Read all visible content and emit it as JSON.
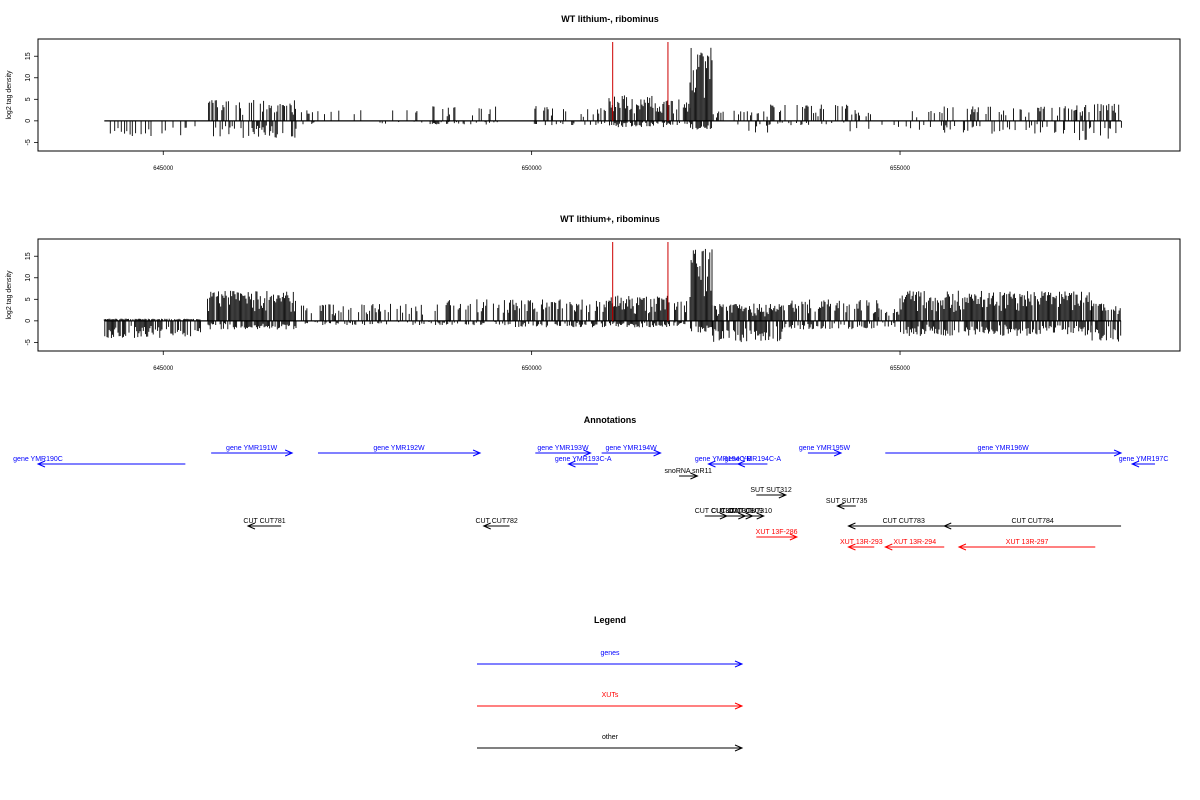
{
  "panels": [
    {
      "title": "WT lithium-, ribominus",
      "ylabel": "log2 tag density",
      "yticks": [
        -5,
        0,
        5,
        10,
        15
      ],
      "ylim": [
        -7,
        19
      ],
      "xlim": [
        643300,
        658800
      ],
      "xticks": [
        645000,
        650000,
        655000
      ],
      "xtick_labels": [
        "645000",
        "650000",
        "655000"
      ],
      "baseline": {
        "from": 644200,
        "to": 658000
      },
      "marker_lines": [
        651100,
        651850
      ],
      "bar_color": "#000000",
      "marker_color": "#cc0000",
      "segments": [
        {
          "from": 644200,
          "to": 645500,
          "pos": 0,
          "neg": 4,
          "dens": 0.35
        },
        {
          "from": 645600,
          "to": 646800,
          "pos": 5,
          "neg": 4,
          "dens": 0.55
        },
        {
          "from": 646800,
          "to": 648600,
          "pos": 2.5,
          "neg": 0.8,
          "dens": 0.12
        },
        {
          "from": 648600,
          "to": 649600,
          "pos": 3.5,
          "neg": 1,
          "dens": 0.25
        },
        {
          "from": 650000,
          "to": 651050,
          "pos": 3.5,
          "neg": 1,
          "dens": 0.3
        },
        {
          "from": 651050,
          "to": 651850,
          "pos": 6,
          "neg": 1.5,
          "dens": 0.9
        },
        {
          "from": 651850,
          "to": 652150,
          "pos": 5,
          "neg": 1,
          "dens": 0.5
        },
        {
          "from": 652150,
          "to": 652450,
          "pos": 17,
          "neg": 2,
          "dens": 1
        },
        {
          "from": 652450,
          "to": 653200,
          "pos": 2.5,
          "neg": 3,
          "dens": 0.3
        },
        {
          "from": 653200,
          "to": 654300,
          "pos": 4,
          "neg": 1,
          "dens": 0.25
        },
        {
          "from": 654300,
          "to": 655600,
          "pos": 2.5,
          "neg": 2.5,
          "dens": 0.2
        },
        {
          "from": 655600,
          "to": 657400,
          "pos": 3.5,
          "neg": 3,
          "dens": 0.3
        },
        {
          "from": 657400,
          "to": 658000,
          "pos": 4,
          "neg": 4.5,
          "dens": 0.5
        }
      ]
    },
    {
      "title": "WT lithium+, ribominus",
      "ylabel": "log2 tag density",
      "yticks": [
        -5,
        0,
        5,
        10,
        15
      ],
      "ylim": [
        -7,
        19
      ],
      "xlim": [
        643300,
        658800
      ],
      "xticks": [
        645000,
        650000,
        655000
      ],
      "xtick_labels": [
        "645000",
        "650000",
        "655000"
      ],
      "baseline": {
        "from": 644200,
        "to": 658000
      },
      "marker_lines": [
        651100,
        651850
      ],
      "bar_color": "#000000",
      "marker_color": "#cc0000",
      "segments": [
        {
          "from": 644200,
          "to": 645500,
          "pos": 0.5,
          "neg": 4,
          "dens": 0.85
        },
        {
          "from": 645600,
          "to": 646800,
          "pos": 7,
          "neg": 2,
          "dens": 0.95
        },
        {
          "from": 646800,
          "to": 648600,
          "pos": 4,
          "neg": 1,
          "dens": 0.35
        },
        {
          "from": 648600,
          "to": 649700,
          "pos": 5,
          "neg": 1,
          "dens": 0.45
        },
        {
          "from": 649700,
          "to": 651050,
          "pos": 5,
          "neg": 1.5,
          "dens": 0.55
        },
        {
          "from": 651050,
          "to": 651850,
          "pos": 6,
          "neg": 1.5,
          "dens": 0.95
        },
        {
          "from": 651850,
          "to": 652150,
          "pos": 5,
          "neg": 1.5,
          "dens": 0.6
        },
        {
          "from": 652150,
          "to": 652450,
          "pos": 17,
          "neg": 3,
          "dens": 1
        },
        {
          "from": 652450,
          "to": 653400,
          "pos": 4,
          "neg": 5,
          "dens": 0.85
        },
        {
          "from": 653400,
          "to": 654700,
          "pos": 5,
          "neg": 2,
          "dens": 0.6
        },
        {
          "from": 654700,
          "to": 655000,
          "pos": 3,
          "neg": 1.5,
          "dens": 0.4
        },
        {
          "from": 655000,
          "to": 657600,
          "pos": 7,
          "neg": 3.5,
          "dens": 0.95
        },
        {
          "from": 657600,
          "to": 658000,
          "pos": 4,
          "neg": 5,
          "dens": 0.8
        }
      ]
    }
  ],
  "annotations": {
    "title": "Annotations",
    "items": [
      {
        "label": "gene YMR190C",
        "color": "#0000ff",
        "dir": "left",
        "track": 1,
        "x1": 643300,
        "x2": 645300,
        "label_x": 643300
      },
      {
        "label": "gene YMR191W",
        "color": "#0000ff",
        "dir": "right",
        "track": 0,
        "x1": 645650,
        "x2": 646750
      },
      {
        "label": "gene YMR192W",
        "color": "#0000ff",
        "dir": "right",
        "track": 0,
        "x1": 647100,
        "x2": 649300
      },
      {
        "label": "gene YMR193W",
        "color": "#0000ff",
        "dir": "right",
        "track": 0,
        "x1": 650050,
        "x2": 650800
      },
      {
        "label": "gene YMR193C-A",
        "color": "#0000ff",
        "dir": "left",
        "track": 1,
        "x1": 650500,
        "x2": 650900
      },
      {
        "label": "gene YMR194W",
        "color": "#0000ff",
        "dir": "right",
        "track": 0,
        "x1": 650950,
        "x2": 651750
      },
      {
        "label": "gene YMR194C-B",
        "color": "#0000ff",
        "dir": "left",
        "track": 1,
        "x1": 652400,
        "x2": 652800
      },
      {
        "label": "gene YMR194C-A",
        "color": "#0000ff",
        "dir": "left",
        "track": 1,
        "x1": 652800,
        "x2": 653200
      },
      {
        "label": "gene YMR195W",
        "color": "#0000ff",
        "dir": "right",
        "track": 0,
        "x1": 653750,
        "x2": 654200
      },
      {
        "label": "gene YMR196W",
        "color": "#0000ff",
        "dir": "right",
        "track": 0,
        "x1": 654800,
        "x2": 658000
      },
      {
        "label": "gene YMR197C",
        "color": "#0000ff",
        "dir": "left",
        "track": 1,
        "x1": 658150,
        "x2": 658800
      },
      {
        "label": "snoRNA snR11",
        "color": "#000000",
        "dir": "right",
        "track": 2,
        "x1": 652000,
        "x2": 652250
      },
      {
        "label": "SUT SUT312",
        "color": "#000000",
        "dir": "right",
        "track": 3,
        "x1": 653050,
        "x2": 653450
      },
      {
        "label": "SUT SUT735",
        "color": "#000000",
        "dir": "left",
        "track": 4,
        "x1": 654150,
        "x2": 654400
      },
      {
        "label": "CUT CUT781",
        "color": "#000000",
        "dir": "left",
        "track": 6,
        "x1": 646150,
        "x2": 646600
      },
      {
        "label": "CUT CUT782",
        "color": "#000000",
        "dir": "left",
        "track": 6,
        "x1": 649350,
        "x2": 649700
      },
      {
        "label": "CUT CUT307",
        "color": "#000000",
        "dir": "right",
        "track": 5,
        "x1": 652350,
        "x2": 652650
      },
      {
        "label": "CUT CUT308",
        "color": "#000000",
        "dir": "right",
        "track": 5,
        "x1": 652550,
        "x2": 652900
      },
      {
        "label": "CUT CUT309",
        "color": "#000000",
        "dir": "right",
        "track": 5,
        "x1": 652700,
        "x2": 653000
      },
      {
        "label": "CUT CUT310",
        "color": "#000000",
        "dir": "right",
        "track": 5,
        "x1": 652800,
        "x2": 653150
      },
      {
        "label": "CUT CUT783",
        "color": "#000000",
        "dir": "left",
        "track": 6,
        "x1": 654300,
        "x2": 655800
      },
      {
        "label": "CUT CUT784",
        "color": "#000000",
        "dir": "left",
        "track": 6,
        "x1": 655600,
        "x2": 658000
      },
      {
        "label": "XUT 13F-286",
        "color": "#ff0000",
        "dir": "right",
        "track": 7,
        "x1": 653050,
        "x2": 653600
      },
      {
        "label": "XUT 13R-293",
        "color": "#ff0000",
        "dir": "left",
        "track": 8,
        "x1": 654300,
        "x2": 654650
      },
      {
        "label": "XUT 13R-294",
        "color": "#ff0000",
        "dir": "left",
        "track": 8,
        "x1": 654800,
        "x2": 655600
      },
      {
        "label": "XUT 13R-297",
        "color": "#ff0000",
        "dir": "left",
        "track": 8,
        "x1": 655800,
        "x2": 657650
      }
    ]
  },
  "legend": {
    "title": "Legend",
    "items": [
      {
        "label": "genes",
        "color": "#0000ff"
      },
      {
        "label": "XUTs",
        "color": "#ff0000"
      },
      {
        "label": "other",
        "color": "#000000"
      }
    ]
  }
}
